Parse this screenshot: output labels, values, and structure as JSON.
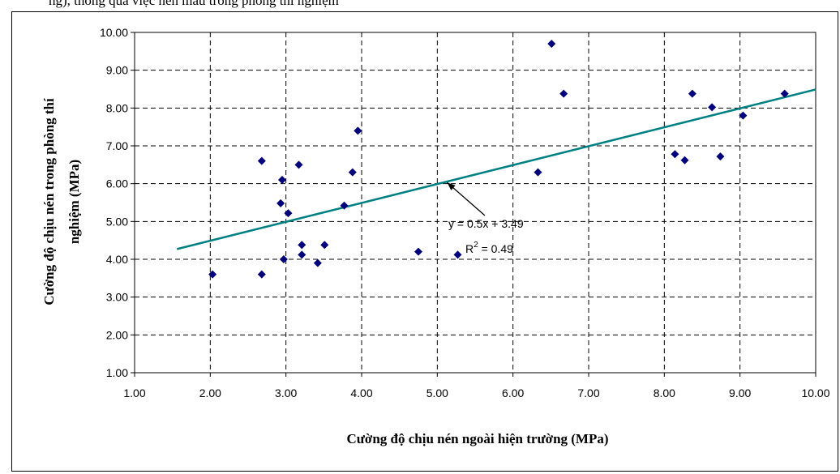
{
  "header_fragment": "ng), thông qua việc nén mẫu trong phòng thí nghiệm",
  "chart_data": {
    "type": "scatter",
    "title": "",
    "xlabel": "Cường độ chịu nén ngoài hiện trường (MPa)",
    "ylabel_line1": "Cường độ chịu nén trong phòng thí",
    "ylabel_line2": "nghiệm (MPa)",
    "xlim": [
      1.0,
      10.0
    ],
    "ylim": [
      1.0,
      10.0
    ],
    "x_ticks": [
      "1.00",
      "2.00",
      "3.00",
      "4.00",
      "5.00",
      "6.00",
      "7.00",
      "8.00",
      "9.00",
      "10.00"
    ],
    "y_ticks": [
      "1.00",
      "2.00",
      "3.00",
      "4.00",
      "5.00",
      "6.00",
      "7.00",
      "8.00",
      "9.00",
      "10.00"
    ],
    "grid": true,
    "marker_color": "#000080",
    "trendline_color": "#008080",
    "points": [
      {
        "x": 2.03,
        "y": 3.6
      },
      {
        "x": 2.68,
        "y": 6.6
      },
      {
        "x": 2.68,
        "y": 3.6
      },
      {
        "x": 2.93,
        "y": 5.48
      },
      {
        "x": 2.95,
        "y": 6.1
      },
      {
        "x": 2.97,
        "y": 4.0
      },
      {
        "x": 3.03,
        "y": 5.22
      },
      {
        "x": 3.17,
        "y": 6.5
      },
      {
        "x": 3.21,
        "y": 4.38
      },
      {
        "x": 3.21,
        "y": 4.12
      },
      {
        "x": 3.42,
        "y": 3.9
      },
      {
        "x": 3.51,
        "y": 4.38
      },
      {
        "x": 3.77,
        "y": 5.42
      },
      {
        "x": 3.88,
        "y": 6.3
      },
      {
        "x": 3.95,
        "y": 7.4
      },
      {
        "x": 4.75,
        "y": 4.2
      },
      {
        "x": 5.27,
        "y": 4.12
      },
      {
        "x": 6.33,
        "y": 6.3
      },
      {
        "x": 6.51,
        "y": 9.7
      },
      {
        "x": 6.67,
        "y": 8.38
      },
      {
        "x": 8.14,
        "y": 6.78
      },
      {
        "x": 8.27,
        "y": 6.62
      },
      {
        "x": 8.37,
        "y": 8.38
      },
      {
        "x": 8.63,
        "y": 8.02
      },
      {
        "x": 8.74,
        "y": 6.72
      },
      {
        "x": 9.04,
        "y": 7.8
      },
      {
        "x": 9.59,
        "y": 8.38
      }
    ],
    "trendline": {
      "x_start": 1.56,
      "x_end": 10.0,
      "slope": 0.5,
      "intercept": 3.49
    },
    "equation_text": "y = 0.5x + 3.49",
    "r2_prefix": "R",
    "r2_sup": "2",
    "r2_value": " = 0.49",
    "annotation_arrow_target": {
      "x": 5.13,
      "y": 6.03
    }
  }
}
